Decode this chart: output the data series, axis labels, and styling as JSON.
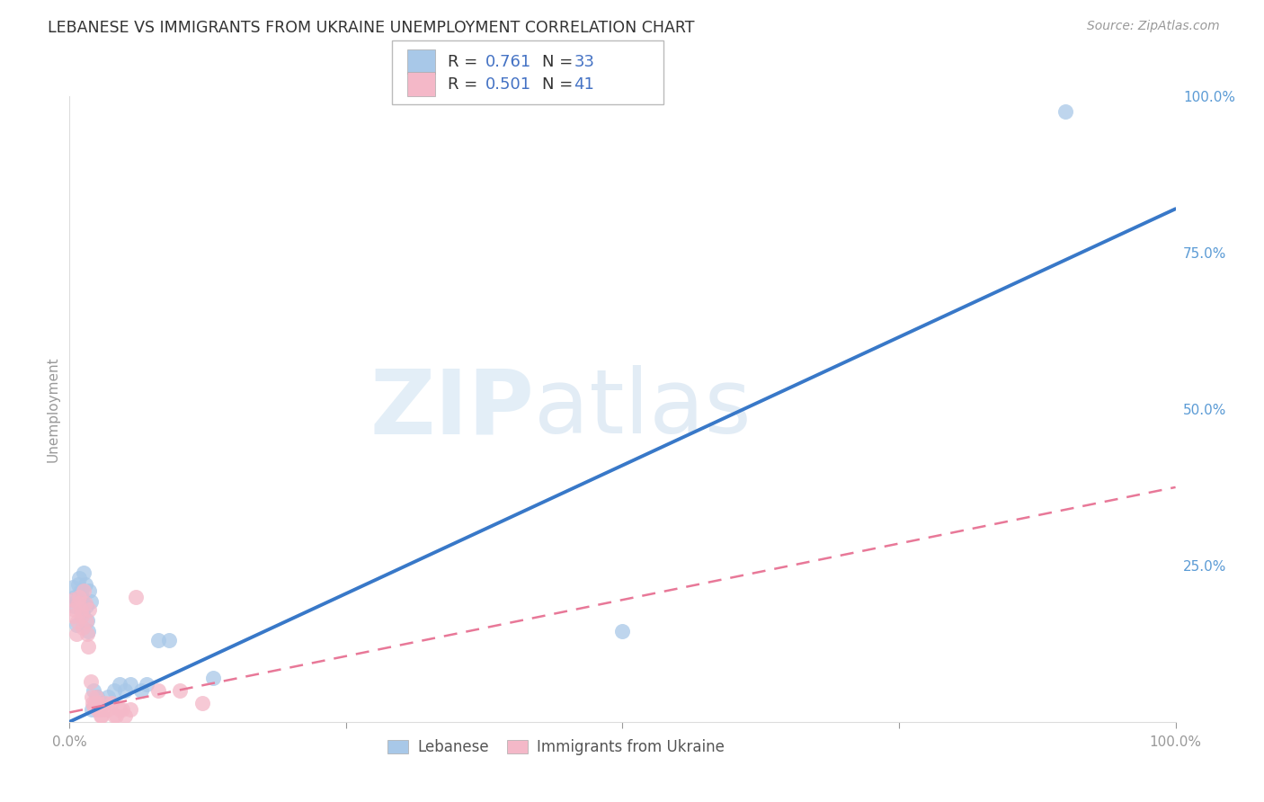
{
  "title": "LEBANESE VS IMMIGRANTS FROM UKRAINE UNEMPLOYMENT CORRELATION CHART",
  "source": "Source: ZipAtlas.com",
  "ylabel": "Unemployment",
  "watermark_zip": "ZIP",
  "watermark_atlas": "atlas",
  "legend_blue_r": "R = ",
  "legend_blue_rv": "0.761",
  "legend_blue_n": "N = ",
  "legend_blue_nv": "33",
  "legend_pink_r": "R = ",
  "legend_pink_rv": "0.501",
  "legend_pink_n": "N = ",
  "legend_pink_nv": "41",
  "legend_label_blue": "Lebanese",
  "legend_label_pink": "Immigrants from Ukraine",
  "blue_color": "#a8c8e8",
  "pink_color": "#f4b8c8",
  "blue_line_color": "#3878c8",
  "pink_line_color": "#e87898",
  "blue_r_color": "#4472c4",
  "pink_r_color": "#4472c4",
  "blue_scatter": [
    [
      0.003,
      0.215
    ],
    [
      0.004,
      0.185
    ],
    [
      0.005,
      0.2
    ],
    [
      0.006,
      0.155
    ],
    [
      0.007,
      0.195
    ],
    [
      0.008,
      0.22
    ],
    [
      0.009,
      0.23
    ],
    [
      0.01,
      0.21
    ],
    [
      0.011,
      0.2
    ],
    [
      0.012,
      0.175
    ],
    [
      0.013,
      0.238
    ],
    [
      0.014,
      0.22
    ],
    [
      0.015,
      0.185
    ],
    [
      0.016,
      0.162
    ],
    [
      0.017,
      0.145
    ],
    [
      0.018,
      0.21
    ],
    [
      0.019,
      0.192
    ],
    [
      0.02,
      0.02
    ],
    [
      0.022,
      0.05
    ],
    [
      0.025,
      0.04
    ],
    [
      0.03,
      0.03
    ],
    [
      0.035,
      0.04
    ],
    [
      0.04,
      0.05
    ],
    [
      0.045,
      0.06
    ],
    [
      0.05,
      0.05
    ],
    [
      0.055,
      0.06
    ],
    [
      0.065,
      0.05
    ],
    [
      0.07,
      0.06
    ],
    [
      0.08,
      0.13
    ],
    [
      0.09,
      0.13
    ],
    [
      0.13,
      0.07
    ],
    [
      0.5,
      0.145
    ],
    [
      0.9,
      0.975
    ]
  ],
  "pink_scatter": [
    [
      0.003,
      0.195
    ],
    [
      0.004,
      0.17
    ],
    [
      0.005,
      0.18
    ],
    [
      0.006,
      0.14
    ],
    [
      0.007,
      0.16
    ],
    [
      0.008,
      0.19
    ],
    [
      0.009,
      0.2
    ],
    [
      0.01,
      0.18
    ],
    [
      0.011,
      0.17
    ],
    [
      0.012,
      0.15
    ],
    [
      0.013,
      0.21
    ],
    [
      0.014,
      0.19
    ],
    [
      0.015,
      0.16
    ],
    [
      0.016,
      0.14
    ],
    [
      0.017,
      0.12
    ],
    [
      0.018,
      0.18
    ],
    [
      0.019,
      0.065
    ],
    [
      0.02,
      0.04
    ],
    [
      0.021,
      0.03
    ],
    [
      0.022,
      0.025
    ],
    [
      0.023,
      0.03
    ],
    [
      0.024,
      0.04
    ],
    [
      0.025,
      0.02
    ],
    [
      0.026,
      0.03
    ],
    [
      0.027,
      0.02
    ],
    [
      0.028,
      0.01
    ],
    [
      0.029,
      0.01
    ],
    [
      0.03,
      0.02
    ],
    [
      0.032,
      0.03
    ],
    [
      0.035,
      0.02
    ],
    [
      0.038,
      0.03
    ],
    [
      0.04,
      0.01
    ],
    [
      0.042,
      0.01
    ],
    [
      0.045,
      0.02
    ],
    [
      0.048,
      0.02
    ],
    [
      0.05,
      0.01
    ],
    [
      0.055,
      0.02
    ],
    [
      0.06,
      0.2
    ],
    [
      0.08,
      0.05
    ],
    [
      0.1,
      0.05
    ],
    [
      0.12,
      0.03
    ]
  ],
  "blue_line_x": [
    0.0,
    1.0
  ],
  "blue_line_y": [
    0.0,
    0.82
  ],
  "pink_line_x": [
    0.0,
    1.0
  ],
  "pink_line_y": [
    0.015,
    0.375
  ],
  "xlim": [
    0.0,
    1.0
  ],
  "ylim": [
    0.0,
    1.0
  ],
  "right_ytick_positions": [
    0.25,
    0.5,
    0.75,
    1.0
  ],
  "right_ytick_labels": [
    "25.0%",
    "50.0%",
    "75.0%",
    "100.0%"
  ],
  "background_color": "#ffffff",
  "grid_color": "#cccccc",
  "text_color": "#333333",
  "axis_color": "#999999",
  "right_tick_color": "#5b9bd5"
}
